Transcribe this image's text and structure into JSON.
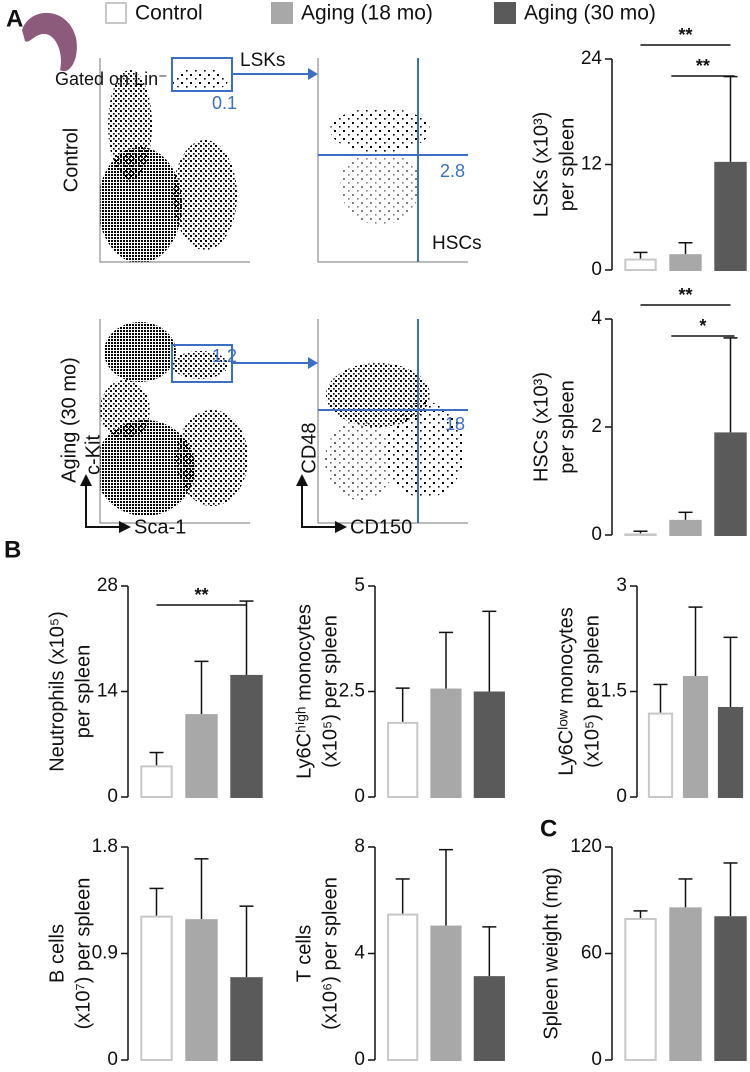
{
  "panels": {
    "a": "A",
    "b": "B",
    "c": "C"
  },
  "legend": [
    {
      "name": "Control",
      "color": "#ffffff",
      "edge": "#c8c8c8"
    },
    {
      "name": "Aging (18 mo)",
      "color": "#a8a8a8",
      "edge": "#a8a8a8"
    },
    {
      "name": "Aging (30 mo)",
      "color": "#5a5a5a",
      "edge": "#5a5a5a"
    }
  ],
  "flow": {
    "gate_label": "Gated on Lin⁻",
    "lsk_label": "LSKs",
    "hsc_label": "HSCs",
    "x_axis": [
      "Sca-1",
      "CD150"
    ],
    "y_axis": [
      "c-Kit",
      "CD48"
    ],
    "rows": [
      {
        "label": "Control",
        "lsk_percent": 0.1,
        "hsc_percent": 2.8
      },
      {
        "label": "Aging (30 mo)",
        "lsk_percent": 1.2,
        "hsc_percent": 18
      }
    ]
  },
  "chart_data": [
    {
      "type": "bar",
      "ylabel": [
        "LSKs (x10³)",
        "per spleen"
      ],
      "categories": [
        null,
        null,
        null
      ],
      "values": [
        1.3,
        1.8,
        12.3
      ],
      "errors": [
        0.7,
        1.3,
        9.7
      ],
      "ylim": [
        0,
        24
      ],
      "yticks": [
        0,
        12,
        24
      ],
      "significance": [
        {
          "from": 0,
          "to": 2,
          "label": "**"
        },
        {
          "from": 1,
          "to": 2,
          "label": "**"
        }
      ]
    },
    {
      "type": "bar",
      "ylabel": [
        "HSCs (x10³)",
        "per spleen"
      ],
      "categories": [
        null,
        null,
        null
      ],
      "values": [
        0.03,
        0.28,
        1.9
      ],
      "errors": [
        0.04,
        0.14,
        1.75
      ],
      "ylim": [
        0,
        4
      ],
      "yticks": [
        0,
        2,
        4
      ],
      "significance": [
        {
          "from": 0,
          "to": 2,
          "label": "**"
        },
        {
          "from": 1,
          "to": 2,
          "label": "*"
        }
      ]
    },
    {
      "type": "bar",
      "ylabel": [
        "Neutrophils (x10⁵)",
        "per spleen"
      ],
      "categories": [
        null,
        null,
        null
      ],
      "values": [
        4.2,
        11,
        16.2
      ],
      "errors": [
        1.7,
        7,
        9.8
      ],
      "ylim": [
        0,
        28
      ],
      "yticks": [
        0,
        14,
        28
      ],
      "significance": [
        {
          "from": 0,
          "to": 2,
          "label": "**"
        }
      ]
    },
    {
      "type": "bar",
      "ylabel": [
        "Ly6Cʰⁱᵍʰ monocytes",
        "(x10⁵) per spleen"
      ],
      "categories": [
        null,
        null,
        null
      ],
      "values": [
        1.78,
        2.57,
        2.5
      ],
      "errors": [
        0.8,
        1.33,
        1.9
      ],
      "ylim": [
        0,
        5
      ],
      "yticks": [
        0,
        2.5,
        5
      ]
    },
    {
      "type": "bar",
      "ylabel": [
        "Ly6Cˡᵒʷ monocytes",
        "(x10⁵) per spleen"
      ],
      "categories": [
        null,
        null,
        null
      ],
      "values": [
        1.2,
        1.72,
        1.28
      ],
      "errors": [
        0.4,
        0.98,
        0.99
      ],
      "ylim": [
        0,
        3
      ],
      "yticks": [
        0,
        1.5,
        3
      ]
    },
    {
      "type": "bar",
      "ylabel": [
        "B cells",
        "(x10⁷) per spleen"
      ],
      "categories": [
        null,
        null,
        null
      ],
      "values": [
        1.22,
        1.19,
        0.7
      ],
      "errors": [
        0.23,
        0.51,
        0.6
      ],
      "ylim": [
        0,
        1.8
      ],
      "yticks": [
        0,
        0.9,
        1.8
      ]
    },
    {
      "type": "bar",
      "ylabel": [
        "T cells",
        "(x10⁶) per spleen"
      ],
      "categories": [
        null,
        null,
        null
      ],
      "values": [
        5.5,
        5.05,
        3.15
      ],
      "errors": [
        1.3,
        2.85,
        1.85
      ],
      "ylim": [
        0,
        8
      ],
      "yticks": [
        0,
        4,
        8
      ]
    },
    {
      "type": "bar",
      "ylabel": [
        "Spleen weight (mg)"
      ],
      "categories": [
        null,
        null,
        null
      ],
      "values": [
        80,
        86,
        81
      ],
      "errors": [
        4,
        16,
        30
      ],
      "ylim": [
        0,
        120
      ],
      "yticks": [
        0,
        60,
        120
      ]
    }
  ]
}
